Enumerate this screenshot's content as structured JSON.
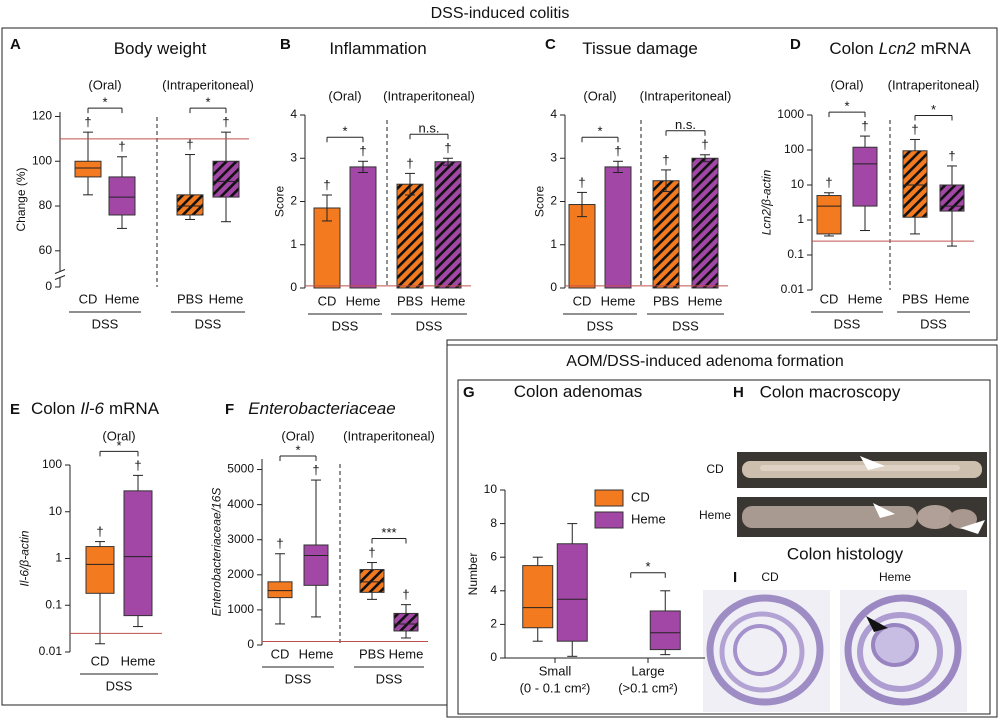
{
  "figure": {
    "title": "DSS-induced colitis"
  },
  "section": {
    "title": "AOM/DSS-induced adenoma formation"
  },
  "macroscopy": {
    "letter": "H",
    "title": "Colon macroscopy",
    "labels": [
      "CD",
      "Heme"
    ]
  },
  "histology": {
    "letter": "I",
    "title": "Colon histology",
    "labels": [
      "CD",
      "Heme"
    ]
  },
  "chart_data": [
    {
      "type": "box",
      "letter": "A",
      "title": "Body weight",
      "ylabel": "Change (%)",
      "ylim": [
        0,
        122
      ],
      "ybreak": 55,
      "yticks": [
        0,
        60,
        80,
        100,
        120
      ],
      "refline": 110,
      "refline_color": "#c0504d",
      "groups": [
        {
          "route": "(Oral)",
          "treatment": "DSS",
          "categories": [
            "CD",
            "Heme"
          ],
          "colors": [
            "#f47a20",
            "#a347a6"
          ],
          "hatched": false,
          "boxes": [
            {
              "min": 85,
              "q1": 93,
              "median": 97,
              "q3": 100,
              "max": 113
            },
            {
              "min": 70,
              "q1": 76,
              "median": 84,
              "q3": 93,
              "max": 102
            }
          ],
          "markers": [
            "†",
            "†"
          ],
          "significance": "*"
        },
        {
          "route": "(Intraperitoneal)",
          "treatment": "DSS",
          "categories": [
            "PBS",
            "Heme"
          ],
          "colors": [
            "#f47a20",
            "#a347a6"
          ],
          "hatched": true,
          "boxes": [
            {
              "min": 74,
              "q1": 76,
              "median": 80,
              "q3": 85,
              "max": 103
            },
            {
              "min": 73,
              "q1": 84,
              "median": 91,
              "q3": 100,
              "max": 113
            }
          ],
          "markers": [
            "†",
            "†"
          ],
          "significance": "*"
        }
      ]
    },
    {
      "type": "bar",
      "letter": "B",
      "title": "Inflammation",
      "ylabel": "Score",
      "ylim": [
        0,
        4
      ],
      "yticks": [
        0,
        1,
        2,
        3,
        4
      ],
      "refline": 0.05,
      "refline_color": "#c0504d",
      "groups": [
        {
          "route": "(Oral)",
          "treatment": "DSS",
          "categories": [
            "CD",
            "Heme"
          ],
          "colors": [
            "#f47a20",
            "#a347a6"
          ],
          "hatched": false,
          "values": [
            1.85,
            2.8
          ],
          "errors": [
            0.3,
            0.13
          ],
          "markers": [
            "†",
            "†"
          ],
          "significance": "*"
        },
        {
          "route": "(Intraperitoneal)",
          "treatment": "DSS",
          "categories": [
            "PBS",
            "Heme"
          ],
          "colors": [
            "#f47a20",
            "#a347a6"
          ],
          "hatched": true,
          "values": [
            2.4,
            2.92
          ],
          "errors": [
            0.25,
            0.08
          ],
          "markers": [
            "†",
            "†"
          ],
          "significance": "n.s."
        }
      ]
    },
    {
      "type": "bar",
      "letter": "C",
      "title": "Tissue damage",
      "ylabel": "Score",
      "ylim": [
        0,
        4
      ],
      "yticks": [
        0,
        1,
        2,
        3,
        4
      ],
      "refline": 0.05,
      "refline_color": "#c0504d",
      "groups": [
        {
          "route": "(Oral)",
          "treatment": "DSS",
          "categories": [
            "CD",
            "Heme"
          ],
          "colors": [
            "#f47a20",
            "#a347a6"
          ],
          "hatched": false,
          "values": [
            1.93,
            2.8
          ],
          "errors": [
            0.28,
            0.13
          ],
          "markers": [
            "†",
            "†"
          ],
          "significance": "*"
        },
        {
          "route": "(Intraperitoneal)",
          "treatment": "DSS",
          "categories": [
            "PBS",
            "Heme"
          ],
          "colors": [
            "#f47a20",
            "#a347a6"
          ],
          "hatched": true,
          "values": [
            2.48,
            3.0
          ],
          "errors": [
            0.25,
            0.08
          ],
          "markers": [
            "†",
            "†"
          ],
          "significance": "n.s."
        }
      ]
    },
    {
      "type": "box",
      "letter": "D",
      "title": "Colon",
      "title_italic": "Lcn2",
      "title_end": "mRNA",
      "ylabel": "Lcn2/β-actin",
      "ylabel_italic": true,
      "log": true,
      "ylim": [
        0.01,
        1000
      ],
      "yticks": [
        0.01,
        0.1,
        1,
        10,
        100,
        1000
      ],
      "refline": 0.25,
      "refline_color": "#c0504d",
      "groups": [
        {
          "route": "(Oral)",
          "treatment": "DSS",
          "categories": [
            "CD",
            "Heme"
          ],
          "colors": [
            "#f47a20",
            "#a347a6"
          ],
          "hatched": false,
          "boxes": [
            {
              "min": 0.35,
              "q1": 0.4,
              "median": 2.5,
              "q3": 5,
              "max": 6
            },
            {
              "min": 0.5,
              "q1": 2.5,
              "median": 40,
              "q3": 120,
              "max": 250
            }
          ],
          "markers": [
            "†",
            "†"
          ],
          "significance": "*"
        },
        {
          "route": "(Intraperitoneal)",
          "treatment": "DSS",
          "categories": [
            "PBS",
            "Heme"
          ],
          "colors": [
            "#f47a20",
            "#a347a6"
          ],
          "hatched": true,
          "boxes": [
            {
              "min": 0.4,
              "q1": 1.2,
              "median": 10,
              "q3": 95,
              "max": 200
            },
            {
              "min": 0.18,
              "q1": 1.8,
              "median": 2.5,
              "q3": 10,
              "max": 35
            }
          ],
          "markers": [
            "†",
            "†"
          ],
          "significance": "*"
        }
      ]
    },
    {
      "type": "box",
      "letter": "E",
      "title": "Colon",
      "title_italic": "Il-6",
      "title_end": "mRNA",
      "ylabel": "Il-6/β-actin",
      "ylabel_italic": true,
      "log": true,
      "ylim": [
        0.01,
        100
      ],
      "yticks": [
        0.01,
        0.1,
        1,
        10,
        100
      ],
      "refline": 0.025,
      "refline_color": "#c0504d",
      "groups": [
        {
          "route": "(Oral)",
          "treatment": "DSS",
          "categories": [
            "CD",
            "Heme"
          ],
          "colors": [
            "#f47a20",
            "#a347a6"
          ],
          "hatched": false,
          "boxes": [
            {
              "min": 0.015,
              "q1": 0.18,
              "median": 0.75,
              "q3": 1.8,
              "max": 2.3
            },
            {
              "min": 0.035,
              "q1": 0.06,
              "median": 1.1,
              "q3": 28,
              "max": 60
            }
          ],
          "markers": [
            "†",
            "†"
          ],
          "significance": "*"
        }
      ]
    },
    {
      "type": "box",
      "letter": "F",
      "title_italic": "Enterobacteriaceae",
      "ylabel": "Enterobacteriaceae/16S",
      "ylabel_italic": true,
      "ylim": [
        0,
        5300
      ],
      "yticks": [
        0,
        1000,
        2000,
        3000,
        4000,
        5000
      ],
      "refline": 100,
      "refline_color": "#c0504d",
      "groups": [
        {
          "route": "(Oral)",
          "treatment": "DSS",
          "categories": [
            "CD",
            "Heme"
          ],
          "colors": [
            "#f47a20",
            "#a347a6"
          ],
          "hatched": false,
          "boxes": [
            {
              "min": 600,
              "q1": 1350,
              "median": 1550,
              "q3": 1800,
              "max": 2600
            },
            {
              "min": 800,
              "q1": 1700,
              "median": 2550,
              "q3": 2850,
              "max": 4700
            }
          ],
          "markers": [
            "†",
            "†"
          ],
          "significance": "*"
        },
        {
          "route": "(Intraperitoneal)",
          "treatment": "DSS",
          "categories": [
            "PBS",
            "Heme"
          ],
          "colors": [
            "#f47a20",
            "#a347a6"
          ],
          "hatched": true,
          "boxes": [
            {
              "min": 1300,
              "q1": 1500,
              "median": 1800,
              "q3": 2150,
              "max": 2350
            },
            {
              "min": 200,
              "q1": 400,
              "median": 600,
              "q3": 900,
              "max": 1150
            }
          ],
          "markers": [
            "†",
            "†"
          ],
          "significance": "***"
        }
      ]
    },
    {
      "type": "grouped_box",
      "letter": "G",
      "title": "Colon adenomas",
      "ylabel": "Number",
      "ylim": [
        0,
        10
      ],
      "yticks": [
        0,
        2,
        4,
        6,
        8,
        10
      ],
      "legend": "upper center",
      "categories": [
        "Small",
        "Large"
      ],
      "category_notes": [
        "(0 - 0.1 cm²)",
        "(>0.1 cm²)"
      ],
      "series": [
        {
          "name": "CD",
          "color": "#f47a20",
          "boxes": [
            {
              "min": 1,
              "q1": 1.8,
              "median": 3,
              "q3": 5.5,
              "max": 6
            },
            {
              "min": 0,
              "q1": 0,
              "median": 0,
              "q3": 0,
              "max": 0
            }
          ]
        },
        {
          "name": "Heme",
          "color": "#a347a6",
          "boxes": [
            {
              "min": 0.1,
              "q1": 1,
              "median": 3.5,
              "q3": 6.8,
              "max": 8
            },
            {
              "min": 0.2,
              "q1": 0.5,
              "median": 1.5,
              "q3": 2.8,
              "max": 4
            }
          ]
        }
      ],
      "significance": [
        null,
        "*"
      ]
    }
  ]
}
